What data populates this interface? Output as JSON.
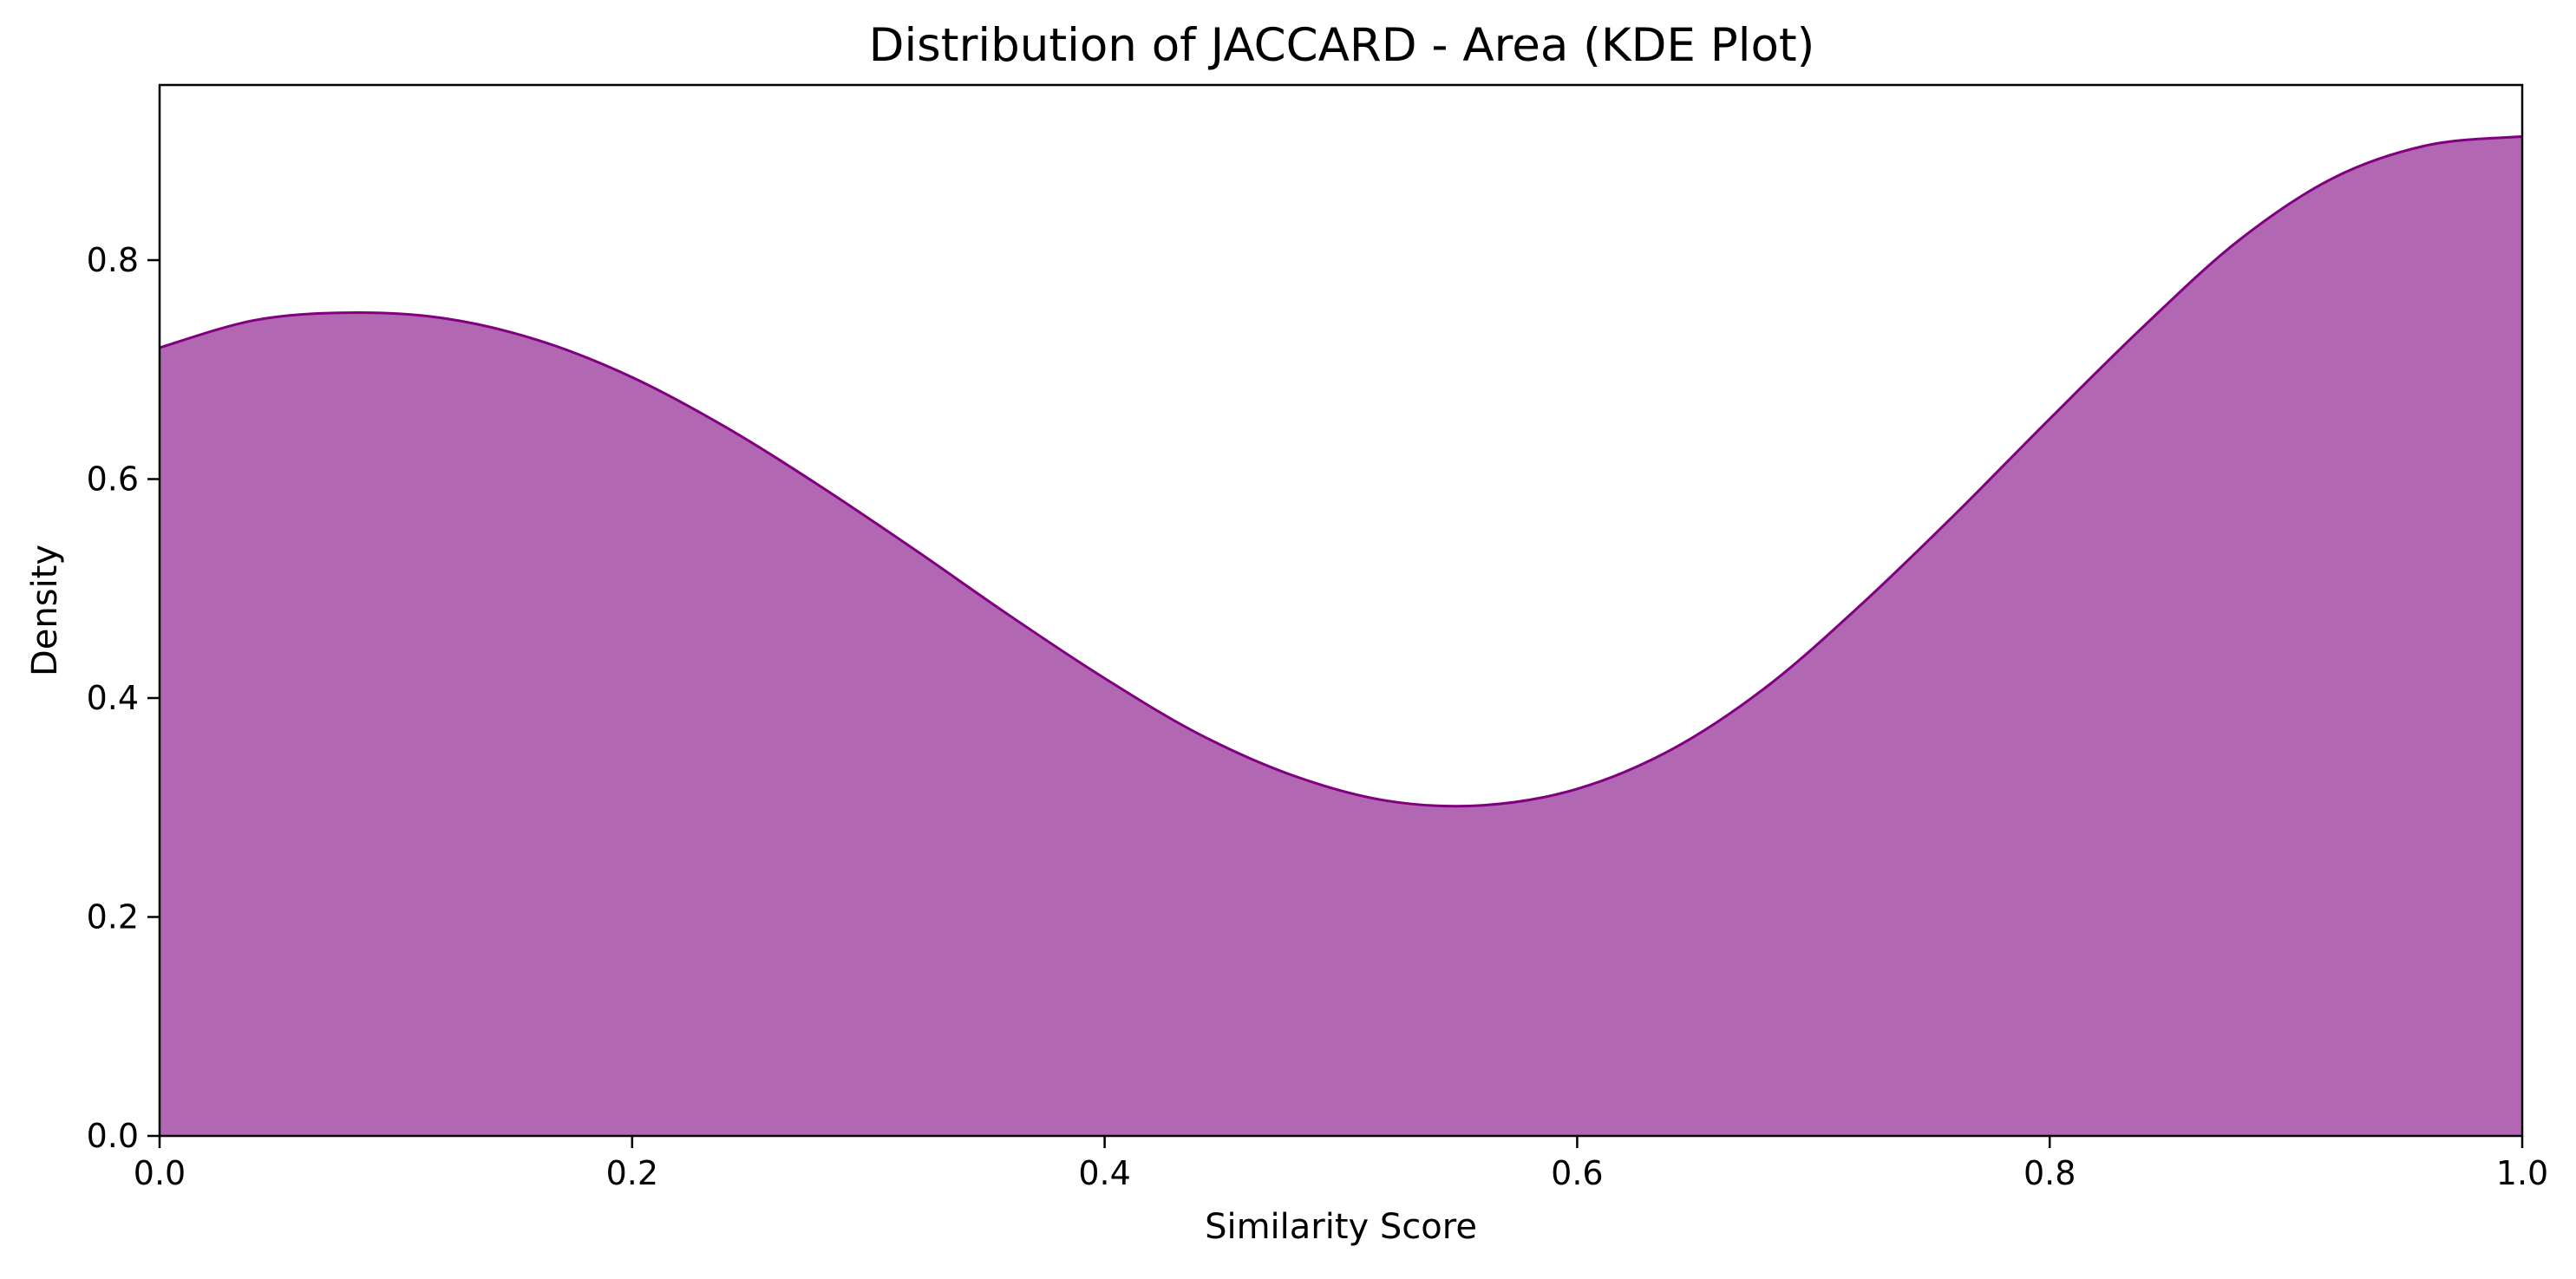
{
  "chart_data": {
    "type": "area",
    "title": "Distribution of JACCARD - Area (KDE Plot)",
    "xlabel": "Similarity Score",
    "ylabel": "Density",
    "xlim": [
      0.0,
      1.0
    ],
    "ylim": [
      0.0,
      0.96
    ],
    "xticks": [
      "0.0",
      "0.2",
      "0.4",
      "0.6",
      "0.8",
      "1.0"
    ],
    "yticks": [
      "0.0",
      "0.2",
      "0.4",
      "0.6",
      "0.8"
    ],
    "grid": false,
    "legend": "none",
    "series": [
      {
        "x": [
          0.0,
          0.04,
          0.08,
          0.12,
          0.16,
          0.2,
          0.24,
          0.28,
          0.32,
          0.36,
          0.4,
          0.44,
          0.48,
          0.52,
          0.56,
          0.6,
          0.64,
          0.68,
          0.72,
          0.76,
          0.8,
          0.84,
          0.88,
          0.92,
          0.96,
          1.0
        ],
        "y": [
          0.72,
          0.745,
          0.752,
          0.747,
          0.727,
          0.693,
          0.647,
          0.593,
          0.535,
          0.475,
          0.418,
          0.367,
          0.329,
          0.306,
          0.302,
          0.317,
          0.353,
          0.41,
          0.485,
          0.568,
          0.655,
          0.74,
          0.818,
          0.875,
          0.905,
          0.913
        ],
        "fill_color": "#b167b1",
        "line_color": "#800080"
      }
    ]
  }
}
